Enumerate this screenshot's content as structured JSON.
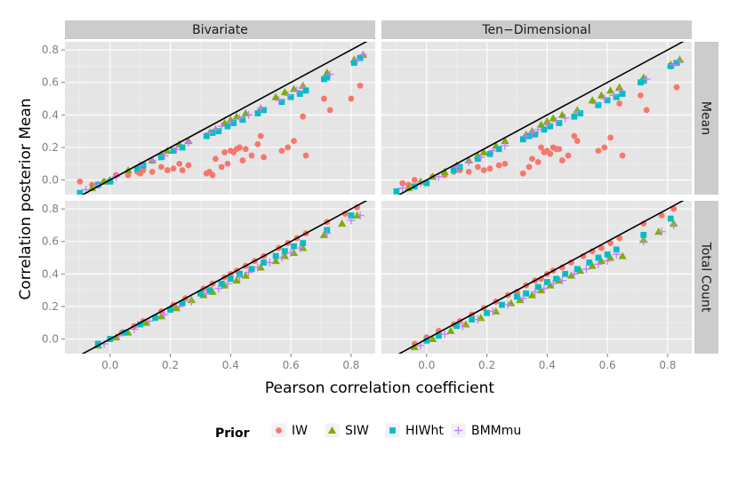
{
  "chart_data": {
    "type": "scatter",
    "facet_columns": [
      "Bivariate",
      "Ten−Dimensional"
    ],
    "facet_rows": [
      "Mean",
      "Total Count"
    ],
    "xlabel": "Pearson correlation coefficient",
    "ylabel": "Correlation posterior Mean",
    "xlim": [
      -0.15,
      0.88
    ],
    "ylim": [
      -0.09,
      0.85
    ],
    "xticks": [
      0.0,
      0.2,
      0.4,
      0.6,
      0.8
    ],
    "xtick_labels": [
      "0.0",
      "0.2",
      "0.4",
      "0.6",
      "0.8"
    ],
    "yticks": [
      0.0,
      0.2,
      0.4,
      0.6,
      0.8
    ],
    "ytick_labels": [
      "0.0",
      "0.2",
      "0.4",
      "0.6",
      "0.8"
    ],
    "reference_line": {
      "type": "identity",
      "slope": 1,
      "intercept": 0
    },
    "legend": {
      "title": "Prior",
      "position": "bottom",
      "entries": [
        {
          "name": "IW",
          "color": "#F8766D",
          "shape": "circle"
        },
        {
          "name": "SIW",
          "color": "#7CAE00",
          "shape": "triangle"
        },
        {
          "name": "HIWht",
          "color": "#00BFC4",
          "shape": "square"
        },
        {
          "name": "BMMmu",
          "color": "#C77CFF",
          "shape": "plus"
        }
      ]
    },
    "pearson_x": [
      -0.1,
      -0.06,
      -0.04,
      -0.02,
      0.0,
      0.02,
      0.06,
      0.09,
      0.1,
      0.11,
      0.14,
      0.17,
      0.18,
      0.19,
      0.21,
      0.23,
      0.24,
      0.26,
      0.31,
      0.32,
      0.33,
      0.34,
      0.35,
      0.36,
      0.37,
      0.38,
      0.39,
      0.4,
      0.41,
      0.42,
      0.43,
      0.44,
      0.45,
      0.47,
      0.49,
      0.5,
      0.51,
      0.55,
      0.57,
      0.58,
      0.6,
      0.61,
      0.63,
      0.64,
      0.65,
      0.71,
      0.72,
      0.73,
      0.81,
      0.83,
      0.84
    ],
    "series_note": "Each series gives posterior correlation values for the listed Pearson coefficients, per facet panel (column-row).",
    "panels": [
      {
        "column": "Bivariate",
        "row": "Mean",
        "series": [
          {
            "name": "IW",
            "x": [
              -0.1,
              -0.06,
              -0.02,
              0.02,
              0.06,
              0.09,
              0.1,
              0.11,
              0.14,
              0.17,
              0.19,
              0.21,
              0.23,
              0.24,
              0.26,
              0.32,
              0.33,
              0.34,
              0.35,
              0.37,
              0.38,
              0.39,
              0.4,
              0.41,
              0.42,
              0.43,
              0.44,
              0.45,
              0.47,
              0.49,
              0.5,
              0.51,
              0.57,
              0.59,
              0.61,
              0.64,
              0.65,
              0.71,
              0.73,
              0.8,
              0.83
            ],
            "y": [
              -0.01,
              -0.03,
              -0.01,
              0.03,
              0.03,
              0.05,
              0.04,
              0.06,
              0.05,
              0.08,
              0.06,
              0.07,
              0.1,
              0.06,
              0.09,
              0.04,
              0.05,
              0.03,
              0.13,
              0.08,
              0.17,
              0.1,
              0.18,
              0.17,
              0.19,
              0.2,
              0.12,
              0.19,
              0.15,
              0.22,
              0.27,
              0.14,
              0.18,
              0.2,
              0.24,
              0.39,
              0.15,
              0.5,
              0.43,
              0.5,
              0.58
            ]
          },
          {
            "name": "SIW",
            "x": [
              -0.06,
              -0.02,
              0.0,
              0.06,
              0.1,
              0.14,
              0.17,
              0.19,
              0.23,
              0.26,
              0.33,
              0.35,
              0.38,
              0.4,
              0.42,
              0.45,
              0.5,
              0.55,
              0.58,
              0.61,
              0.64,
              0.72,
              0.81,
              0.84
            ],
            "y": [
              -0.05,
              -0.01,
              0.0,
              0.06,
              0.09,
              0.12,
              0.16,
              0.18,
              0.22,
              0.24,
              0.29,
              0.31,
              0.35,
              0.37,
              0.39,
              0.41,
              0.44,
              0.51,
              0.54,
              0.56,
              0.58,
              0.66,
              0.74,
              0.77
            ]
          },
          {
            "name": "HIWht",
            "x": [
              -0.1,
              -0.04,
              0.0,
              0.09,
              0.11,
              0.17,
              0.21,
              0.24,
              0.32,
              0.34,
              0.36,
              0.39,
              0.41,
              0.44,
              0.49,
              0.51,
              0.57,
              0.6,
              0.63,
              0.65,
              0.71,
              0.72,
              0.81,
              0.83
            ],
            "y": [
              -0.08,
              -0.03,
              -0.01,
              0.07,
              0.09,
              0.14,
              0.18,
              0.2,
              0.27,
              0.29,
              0.3,
              0.33,
              0.35,
              0.37,
              0.41,
              0.43,
              0.48,
              0.51,
              0.53,
              0.55,
              0.62,
              0.63,
              0.72,
              0.75
            ]
          },
          {
            "name": "BMMmu",
            "x": [
              -0.08,
              -0.04,
              0.02,
              0.1,
              0.14,
              0.18,
              0.22,
              0.26,
              0.33,
              0.35,
              0.37,
              0.4,
              0.43,
              0.46,
              0.5,
              0.56,
              0.59,
              0.62,
              0.64,
              0.73,
              0.82,
              0.84
            ],
            "y": [
              -0.06,
              -0.03,
              0.02,
              0.09,
              0.12,
              0.15,
              0.19,
              0.23,
              0.29,
              0.31,
              0.33,
              0.36,
              0.38,
              0.4,
              0.44,
              0.49,
              0.52,
              0.55,
              0.57,
              0.65,
              0.74,
              0.77
            ]
          }
        ]
      },
      {
        "column": "Ten−Dimensional",
        "row": "Mean",
        "series": [
          {
            "name": "IW",
            "x": [
              -0.08,
              -0.06,
              -0.04,
              0.02,
              0.06,
              0.09,
              0.11,
              0.14,
              0.17,
              0.19,
              0.21,
              0.24,
              0.26,
              0.32,
              0.34,
              0.35,
              0.37,
              0.38,
              0.39,
              0.4,
              0.41,
              0.42,
              0.43,
              0.44,
              0.45,
              0.47,
              0.49,
              0.5,
              0.57,
              0.59,
              0.61,
              0.64,
              0.65,
              0.71,
              0.73,
              0.83
            ],
            "y": [
              -0.02,
              -0.03,
              0.0,
              0.02,
              0.03,
              0.05,
              0.06,
              0.05,
              0.08,
              0.06,
              0.07,
              0.09,
              0.1,
              0.04,
              0.08,
              0.13,
              0.11,
              0.2,
              0.17,
              0.18,
              0.16,
              0.2,
              0.19,
              0.19,
              0.12,
              0.15,
              0.27,
              0.24,
              0.18,
              0.2,
              0.26,
              0.47,
              0.15,
              0.52,
              0.43,
              0.57
            ]
          },
          {
            "name": "SIW",
            "x": [
              -0.06,
              -0.02,
              0.02,
              0.06,
              0.1,
              0.14,
              0.17,
              0.19,
              0.23,
              0.26,
              0.33,
              0.35,
              0.38,
              0.4,
              0.42,
              0.45,
              0.5,
              0.55,
              0.58,
              0.61,
              0.64,
              0.72,
              0.81,
              0.84
            ],
            "y": [
              -0.05,
              -0.01,
              0.02,
              0.05,
              0.09,
              0.12,
              0.15,
              0.17,
              0.21,
              0.24,
              0.28,
              0.3,
              0.34,
              0.36,
              0.38,
              0.4,
              0.43,
              0.49,
              0.52,
              0.55,
              0.57,
              0.63,
              0.71,
              0.74
            ]
          },
          {
            "name": "HIWht",
            "x": [
              -0.1,
              -0.04,
              0.0,
              0.09,
              0.11,
              0.17,
              0.21,
              0.24,
              0.32,
              0.34,
              0.36,
              0.39,
              0.41,
              0.44,
              0.49,
              0.51,
              0.57,
              0.6,
              0.63,
              0.65,
              0.71,
              0.72,
              0.81,
              0.83
            ],
            "y": [
              -0.07,
              -0.04,
              -0.02,
              0.06,
              0.08,
              0.13,
              0.16,
              0.19,
              0.25,
              0.27,
              0.28,
              0.31,
              0.33,
              0.35,
              0.39,
              0.41,
              0.46,
              0.49,
              0.51,
              0.53,
              0.6,
              0.61,
              0.7,
              0.72
            ]
          },
          {
            "name": "BMMmu",
            "x": [
              -0.08,
              -0.02,
              0.04,
              0.1,
              0.14,
              0.18,
              0.22,
              0.26,
              0.33,
              0.35,
              0.37,
              0.4,
              0.43,
              0.46,
              0.5,
              0.56,
              0.59,
              0.62,
              0.64,
              0.73,
              0.82,
              0.84
            ],
            "y": [
              -0.05,
              -0.02,
              0.02,
              0.08,
              0.11,
              0.14,
              0.18,
              0.21,
              0.27,
              0.29,
              0.31,
              0.34,
              0.36,
              0.38,
              0.42,
              0.47,
              0.5,
              0.52,
              0.55,
              0.62,
              0.71,
              0.73
            ]
          }
        ]
      },
      {
        "column": "Bivariate",
        "row": "Total Count",
        "series": [
          {
            "name": "IW",
            "x": [
              -0.04,
              0.0,
              0.04,
              0.08,
              0.11,
              0.17,
              0.21,
              0.25,
              0.31,
              0.34,
              0.38,
              0.4,
              0.42,
              0.45,
              0.48,
              0.51,
              0.56,
              0.59,
              0.62,
              0.65,
              0.72,
              0.78,
              0.82
            ],
            "y": [
              -0.03,
              0.0,
              0.04,
              0.08,
              0.11,
              0.17,
              0.21,
              0.25,
              0.31,
              0.34,
              0.38,
              0.4,
              0.42,
              0.45,
              0.48,
              0.51,
              0.56,
              0.59,
              0.62,
              0.65,
              0.72,
              0.77,
              0.81
            ]
          },
          {
            "name": "SIW",
            "x": [
              -0.04,
              0.02,
              0.06,
              0.12,
              0.17,
              0.22,
              0.27,
              0.31,
              0.34,
              0.38,
              0.42,
              0.45,
              0.5,
              0.55,
              0.58,
              0.61,
              0.64,
              0.71,
              0.77,
              0.82
            ],
            "y": [
              -0.04,
              0.01,
              0.04,
              0.1,
              0.14,
              0.19,
              0.24,
              0.27,
              0.29,
              0.33,
              0.36,
              0.39,
              0.44,
              0.48,
              0.51,
              0.53,
              0.56,
              0.64,
              0.71,
              0.76
            ]
          },
          {
            "name": "HIWht",
            "x": [
              -0.04,
              0.0,
              0.05,
              0.1,
              0.15,
              0.2,
              0.24,
              0.3,
              0.33,
              0.37,
              0.4,
              0.43,
              0.47,
              0.51,
              0.55,
              0.58,
              0.61,
              0.64,
              0.72,
              0.8
            ],
            "y": [
              -0.03,
              0.0,
              0.04,
              0.09,
              0.13,
              0.18,
              0.22,
              0.28,
              0.3,
              0.34,
              0.37,
              0.4,
              0.43,
              0.47,
              0.51,
              0.54,
              0.57,
              0.59,
              0.67,
              0.76
            ]
          },
          {
            "name": "BMMmu",
            "x": [
              -0.02,
              0.03,
              0.08,
              0.13,
              0.18,
              0.23,
              0.27,
              0.32,
              0.36,
              0.39,
              0.43,
              0.46,
              0.49,
              0.53,
              0.57,
              0.6,
              0.63,
              0.72,
              0.8,
              0.83
            ],
            "y": [
              -0.03,
              0.02,
              0.06,
              0.11,
              0.15,
              0.2,
              0.23,
              0.28,
              0.31,
              0.34,
              0.38,
              0.41,
              0.44,
              0.47,
              0.5,
              0.53,
              0.56,
              0.65,
              0.73,
              0.76
            ]
          }
        ]
      },
      {
        "column": "Ten−Dimensional",
        "row": "Total Count",
        "series": [
          {
            "name": "IW",
            "x": [
              -0.04,
              0.0,
              0.04,
              0.09,
              0.11,
              0.15,
              0.19,
              0.23,
              0.27,
              0.3,
              0.33,
              0.36,
              0.38,
              0.4,
              0.42,
              0.45,
              0.48,
              0.52,
              0.55,
              0.58,
              0.61,
              0.64,
              0.72,
              0.78,
              0.82
            ],
            "y": [
              -0.03,
              0.01,
              0.05,
              0.09,
              0.11,
              0.15,
              0.19,
              0.23,
              0.27,
              0.29,
              0.33,
              0.36,
              0.37,
              0.4,
              0.42,
              0.44,
              0.47,
              0.51,
              0.54,
              0.56,
              0.59,
              0.62,
              0.71,
              0.76,
              0.8
            ]
          },
          {
            "name": "SIW",
            "x": [
              -0.04,
              0.02,
              0.08,
              0.13,
              0.18,
              0.23,
              0.28,
              0.31,
              0.35,
              0.38,
              0.41,
              0.44,
              0.48,
              0.51,
              0.55,
              0.58,
              0.61,
              0.65,
              0.72,
              0.77,
              0.82
            ],
            "y": [
              -0.05,
              0.0,
              0.05,
              0.09,
              0.13,
              0.17,
              0.22,
              0.24,
              0.27,
              0.3,
              0.33,
              0.36,
              0.39,
              0.42,
              0.45,
              0.48,
              0.5,
              0.51,
              0.61,
              0.66,
              0.71
            ]
          },
          {
            "name": "HIWht",
            "x": [
              0.0,
              0.04,
              0.1,
              0.15,
              0.2,
              0.25,
              0.3,
              0.33,
              0.37,
              0.4,
              0.43,
              0.46,
              0.5,
              0.54,
              0.57,
              0.6,
              0.63,
              0.72,
              0.81
            ],
            "y": [
              -0.01,
              0.02,
              0.08,
              0.12,
              0.16,
              0.21,
              0.26,
              0.28,
              0.32,
              0.35,
              0.37,
              0.4,
              0.43,
              0.47,
              0.5,
              0.52,
              0.55,
              0.64,
              0.74
            ]
          },
          {
            "name": "BMMmu",
            "x": [
              -0.02,
              0.06,
              0.12,
              0.17,
              0.22,
              0.27,
              0.32,
              0.36,
              0.39,
              0.42,
              0.45,
              0.49,
              0.53,
              0.57,
              0.6,
              0.63,
              0.72,
              0.78,
              0.82
            ],
            "y": [
              -0.04,
              0.03,
              0.08,
              0.12,
              0.17,
              0.21,
              0.25,
              0.29,
              0.31,
              0.34,
              0.36,
              0.4,
              0.43,
              0.46,
              0.48,
              0.52,
              0.6,
              0.66,
              0.7
            ]
          }
        ]
      }
    ]
  }
}
